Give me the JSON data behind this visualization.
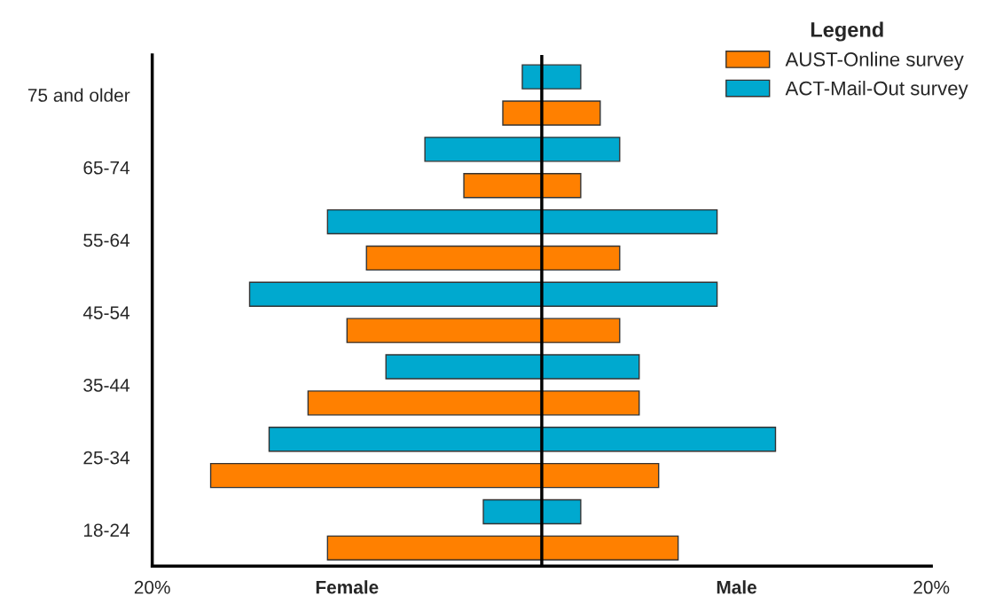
{
  "chart_data": {
    "type": "bar",
    "orientation": "horizontal",
    "legend_title": "Legend",
    "legend": "top right",
    "grid": false,
    "categories": [
      "75 and older",
      "65-74",
      "55-64",
      "45-54",
      "35-44",
      "25-34",
      "18-24"
    ],
    "series": [
      {
        "name": "AUST-Online survey",
        "color": "#ff8000",
        "base": [
          -2,
          -4,
          -9,
          -10,
          -12,
          -17,
          -11
        ],
        "values": [
          5,
          6,
          13,
          14,
          17,
          23,
          18
        ]
      },
      {
        "name": "ACT-Mail-Out survey",
        "color": "#00a9cf",
        "base": [
          -1,
          -6,
          -11,
          -15,
          -8,
          -14,
          -3
        ],
        "values": [
          3,
          10,
          20,
          24,
          13,
          26,
          5
        ]
      }
    ],
    "xlim": [
      -20,
      20
    ],
    "xticks": [
      {
        "value": -20,
        "label": "20%"
      },
      {
        "value": -10,
        "label": "Female"
      },
      {
        "value": 0,
        "label": null
      },
      {
        "value": 10,
        "label": "Male"
      },
      {
        "value": 20,
        "label": "20%"
      }
    ],
    "ref_lines": [
      {
        "axis": "x",
        "value": 0,
        "color": "#000000"
      }
    ]
  }
}
